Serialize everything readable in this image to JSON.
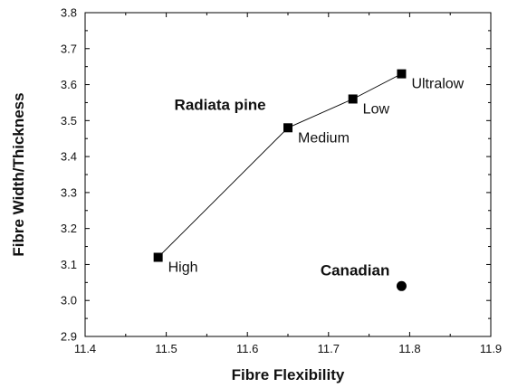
{
  "chart_data": {
    "type": "scatter",
    "xlabel": "Fibre Flexibility",
    "ylabel": "Fibre Width/Thickness",
    "xlim": [
      11.4,
      11.9
    ],
    "ylim": [
      2.9,
      3.8
    ],
    "x_ticks": [
      "11.4",
      "11.5",
      "11.6",
      "11.7",
      "11.8",
      "11.9"
    ],
    "y_ticks": [
      "2.9",
      "3.0",
      "3.1",
      "3.2",
      "3.3",
      "3.4",
      "3.5",
      "3.6",
      "3.7",
      "3.8"
    ],
    "grid": false,
    "series": [
      {
        "name": "Radiata pine",
        "marker": "square",
        "connected": true,
        "points": [
          {
            "x": 11.49,
            "y": 3.12,
            "label": "High"
          },
          {
            "x": 11.65,
            "y": 3.48,
            "label": "Medium"
          },
          {
            "x": 11.73,
            "y": 3.56,
            "label": "Low"
          },
          {
            "x": 11.79,
            "y": 3.63,
            "label": "Ultralow"
          }
        ]
      },
      {
        "name": "Canadian",
        "marker": "circle",
        "connected": false,
        "points": [
          {
            "x": 11.79,
            "y": 3.04,
            "label": ""
          }
        ]
      }
    ],
    "annotations": [
      {
        "text": "Radiata pine",
        "x": 11.51,
        "y": 3.53
      },
      {
        "text": "Canadian",
        "x": 11.69,
        "y": 3.07
      }
    ]
  }
}
